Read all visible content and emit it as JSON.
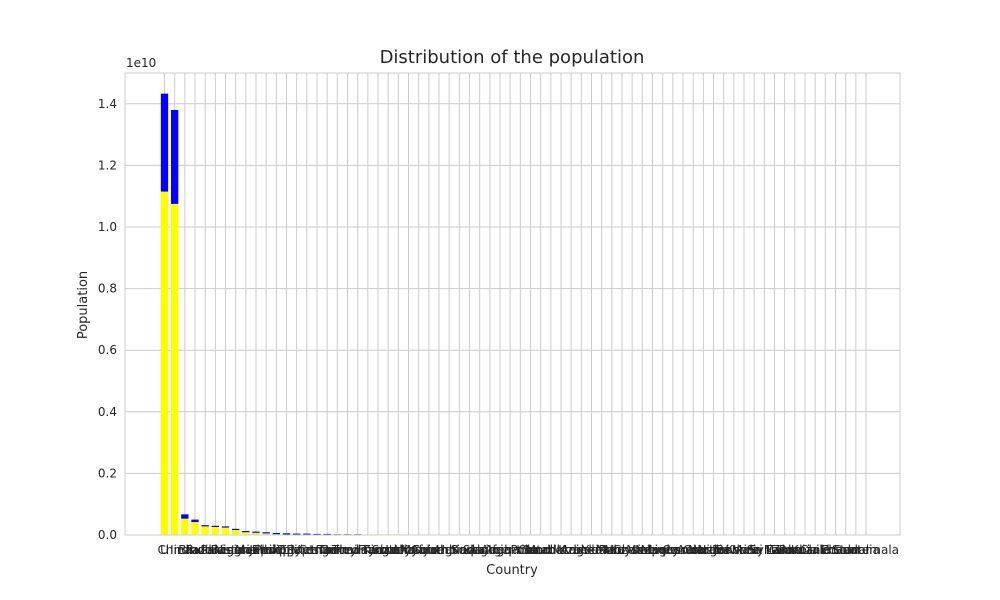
{
  "chart_data": {
    "type": "bar",
    "title": "Distribution of the population",
    "xlabel": "Country",
    "ylabel": "Population",
    "offset_label": "1e10",
    "ylim": [
      0,
      1.5
    ],
    "yticks": [
      0.0,
      0.2,
      0.4,
      0.6,
      0.8,
      1.0,
      1.2,
      1.4
    ],
    "ytick_labels": [
      "0.0",
      "0.2",
      "0.4",
      "0.6",
      "0.8",
      "1.0",
      "1.2",
      "1.4"
    ],
    "grid": true,
    "first_category_label": "U",
    "last_category_label": "Guatemala",
    "categories": [
      "United States",
      "China",
      "India",
      "Brazil",
      "Russia",
      "Indonesia",
      "Pakistan",
      "Nigeria",
      "Bangladesh",
      "Mexico",
      "Japan",
      "Ethiopia",
      "Philippines",
      "Egypt",
      "DR Congo",
      "Vietnam",
      "Iran",
      "Turkey",
      "Germany",
      "Thailand",
      "United Kingdom",
      "France",
      "Tanzania",
      "Italy",
      "South Africa",
      "Kenya",
      "Myanmar",
      "Colombia",
      "South Korea",
      "Uganda",
      "Sudan",
      "Spain",
      "Algeria",
      "Iraq",
      "Argentina",
      "Afghanistan",
      "Poland",
      "Canada",
      "Morocco",
      "Saudi Arabia",
      "Ukraine",
      "Angola",
      "Uzbekistan",
      "Yemen",
      "Peru",
      "Malaysia",
      "Ghana",
      "Mozambique",
      "Nepal",
      "Madagascar",
      "Venezuela",
      "Ivory Coast",
      "Cameroon",
      "Australia",
      "Niger",
      "North Korea",
      "Taiwan",
      "Mali",
      "Burkina Faso",
      "Syria",
      "Sri Lanka",
      "Malawi",
      "Zambia",
      "Romania",
      "Chile",
      "Kazakhstan",
      "Chad",
      "Ecuador",
      "Somalia",
      "Guatemala"
    ],
    "series": [
      {
        "name": "base",
        "color": "#ffff00",
        "values": [
          1.115,
          1.075,
          0.053,
          0.042,
          0.028,
          0.026,
          0.025,
          0.018,
          0.012,
          0.01,
          0.008,
          0.006,
          0.005,
          0.004,
          0.004,
          0.003,
          0.003,
          0.002,
          0.002,
          0.002,
          0.002,
          0.002,
          0.002,
          0.002,
          0.001,
          0.001,
          0.001,
          0.001,
          0.001,
          0.001,
          0.001,
          0.001,
          0.001,
          0.001,
          0.001,
          0.001,
          0.001,
          0.001,
          0.001,
          0.001,
          0.001,
          0.001,
          0.001,
          0.001,
          0.001,
          0.001,
          0.001,
          0.001,
          0.001,
          0.001,
          0.001,
          0.001,
          0.001,
          0.001,
          0.001,
          0.001,
          0.001,
          0.001,
          0.001,
          0.001,
          0.001,
          0.001,
          0.001,
          0.001,
          0.001,
          0.001,
          0.001,
          0.001,
          0.001,
          0.001
        ]
      },
      {
        "name": "top",
        "color": "#0000ff",
        "values": [
          0.318,
          0.305,
          0.014,
          0.008,
          0.004,
          0.004,
          0.003,
          0.002,
          0.001,
          0.001,
          0.001,
          0.0005,
          0.0005,
          0.0005,
          0.0005,
          0.0005,
          0.0005,
          0.0005,
          0.0005,
          0.0005,
          0,
          0,
          0,
          0,
          0,
          0,
          0,
          0,
          0,
          0,
          0,
          0,
          0,
          0,
          0,
          0,
          0,
          0,
          0,
          0,
          0,
          0,
          0,
          0,
          0,
          0,
          0,
          0,
          0,
          0,
          0,
          0,
          0,
          0,
          0,
          0,
          0,
          0,
          0,
          0,
          0,
          0,
          0,
          0,
          0,
          0,
          0,
          0,
          0,
          0
        ]
      }
    ]
  }
}
